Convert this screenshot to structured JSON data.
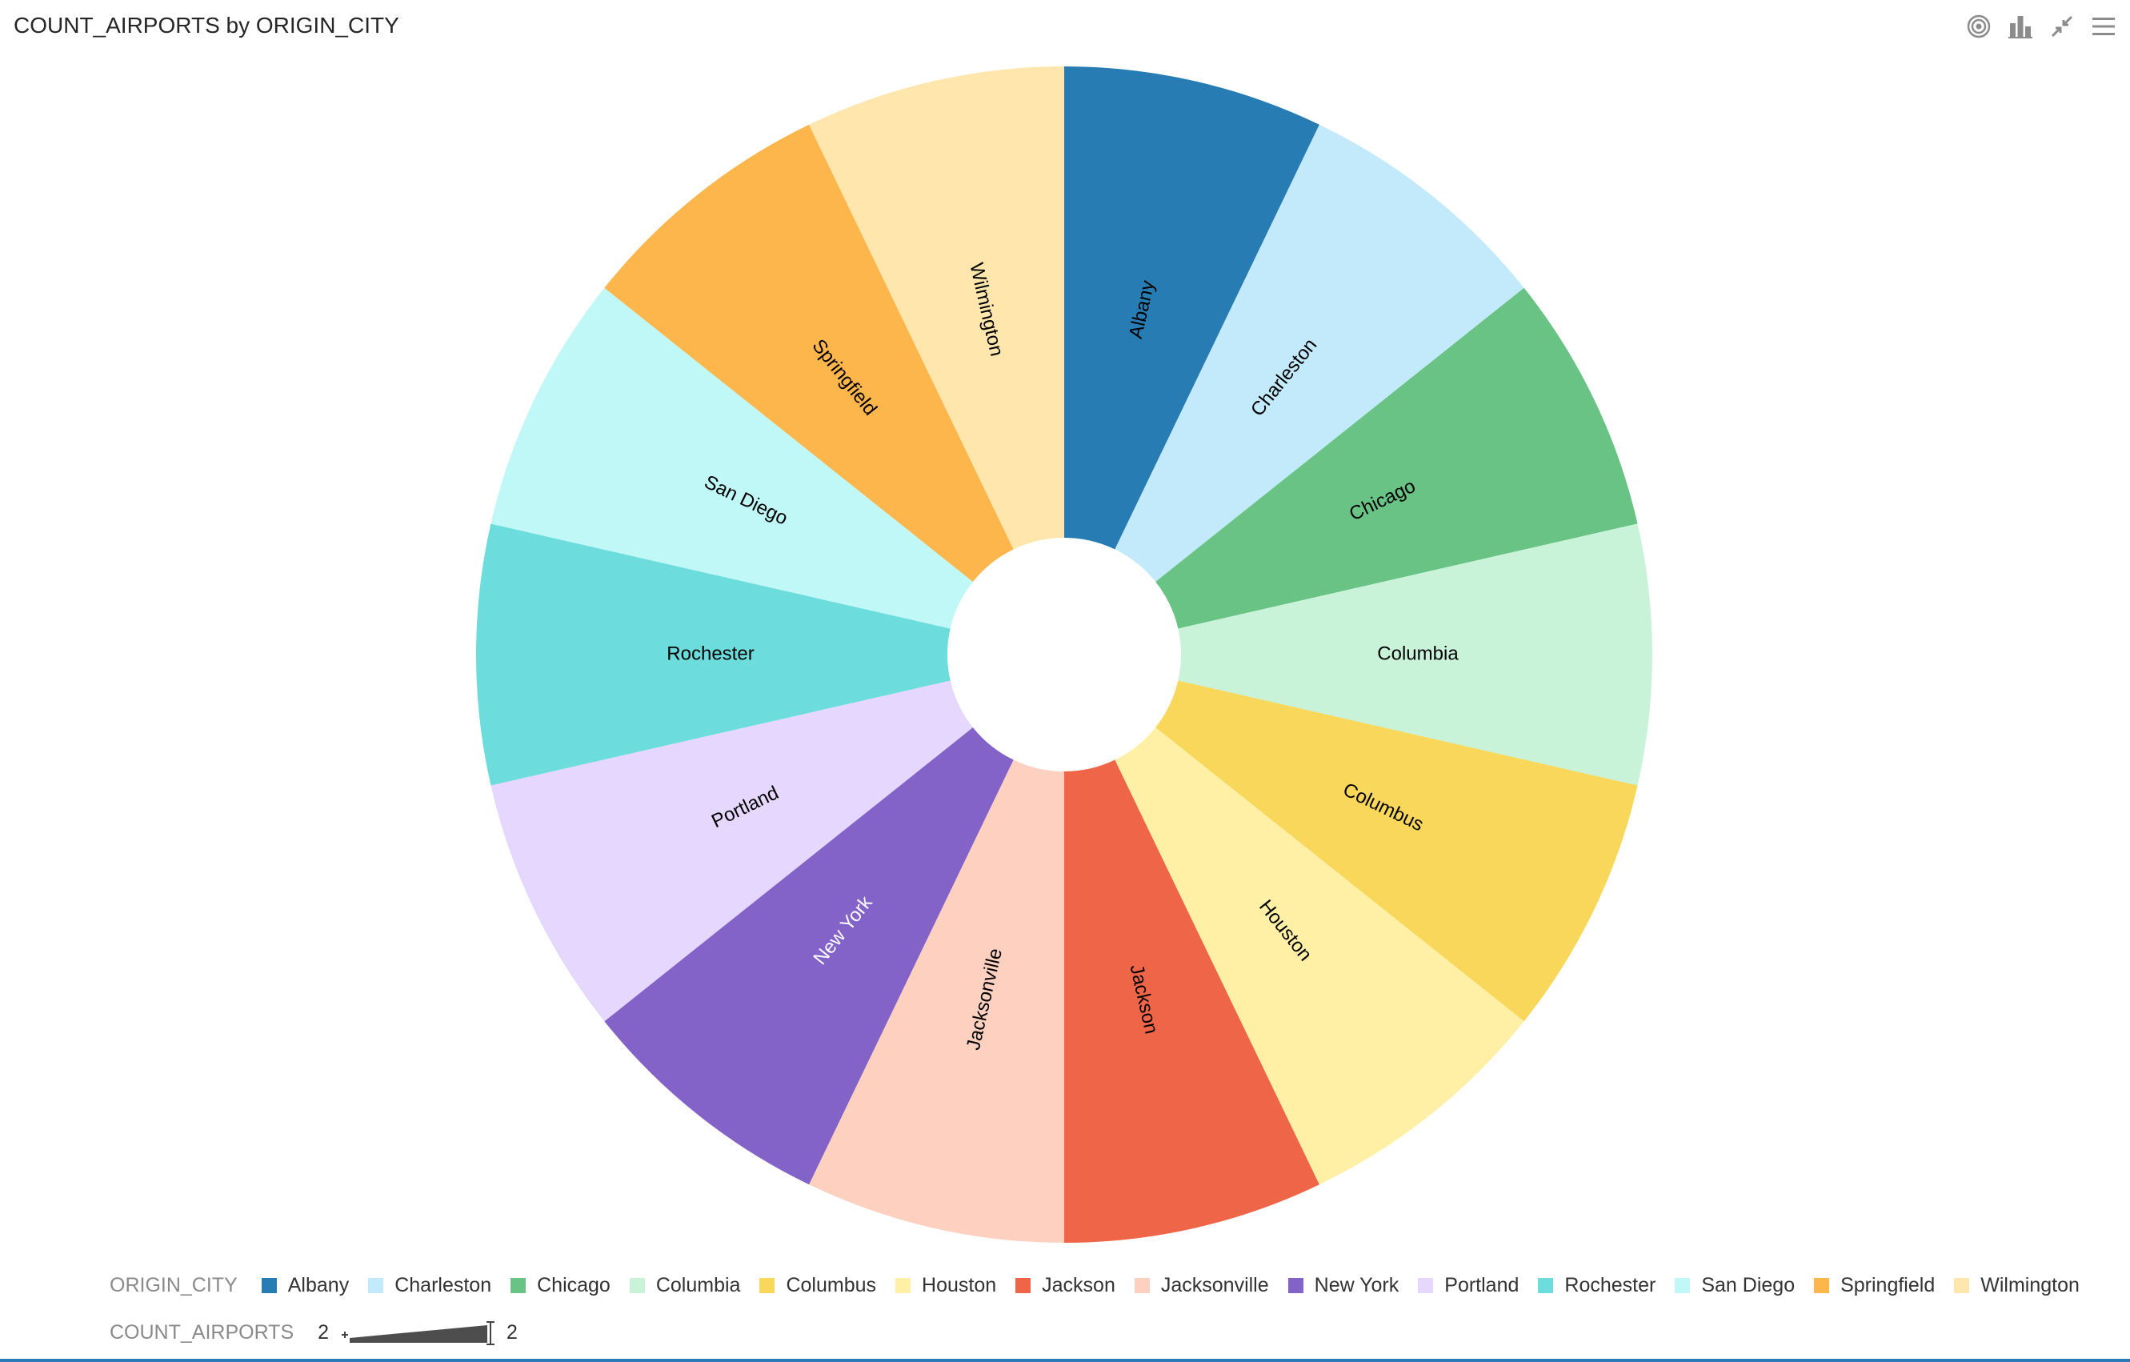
{
  "header": {
    "title": "COUNT_AIRPORTS by ORIGIN_CITY",
    "toolbar": [
      {
        "name": "target-icon"
      },
      {
        "name": "bar-chart-icon"
      },
      {
        "name": "collapse-icon"
      },
      {
        "name": "menu-icon"
      }
    ]
  },
  "chart_data": {
    "type": "pie",
    "title": "COUNT_AIRPORTS by ORIGIN_CITY",
    "color_field": "ORIGIN_CITY",
    "size_field": "COUNT_AIRPORTS",
    "categories": [
      "Albany",
      "Charleston",
      "Chicago",
      "Columbia",
      "Columbus",
      "Houston",
      "Jackson",
      "Jacksonville",
      "New York",
      "Portland",
      "Rochester",
      "San Diego",
      "Springfield",
      "Wilmington"
    ],
    "values": [
      2,
      2,
      2,
      2,
      2,
      2,
      2,
      2,
      2,
      2,
      2,
      2,
      2,
      2
    ],
    "colors": [
      "#277cb4",
      "#c3eafb",
      "#69c384",
      "#c8f3d8",
      "#f8d75a",
      "#fff0a6",
      "#ef6548",
      "#fdd0c0",
      "#8463c9",
      "#e5d7fd",
      "#6ddcdc",
      "#c0f7f7",
      "#fdb64c",
      "#fee6ad"
    ],
    "label_colors": [
      "#000000",
      "#000000",
      "#000000",
      "#000000",
      "#000000",
      "#000000",
      "#000000",
      "#000000",
      "#ffffff",
      "#000000",
      "#000000",
      "#000000",
      "#000000",
      "#000000"
    ],
    "donut": true,
    "size_legend": {
      "min": "2",
      "max": "2"
    }
  }
}
